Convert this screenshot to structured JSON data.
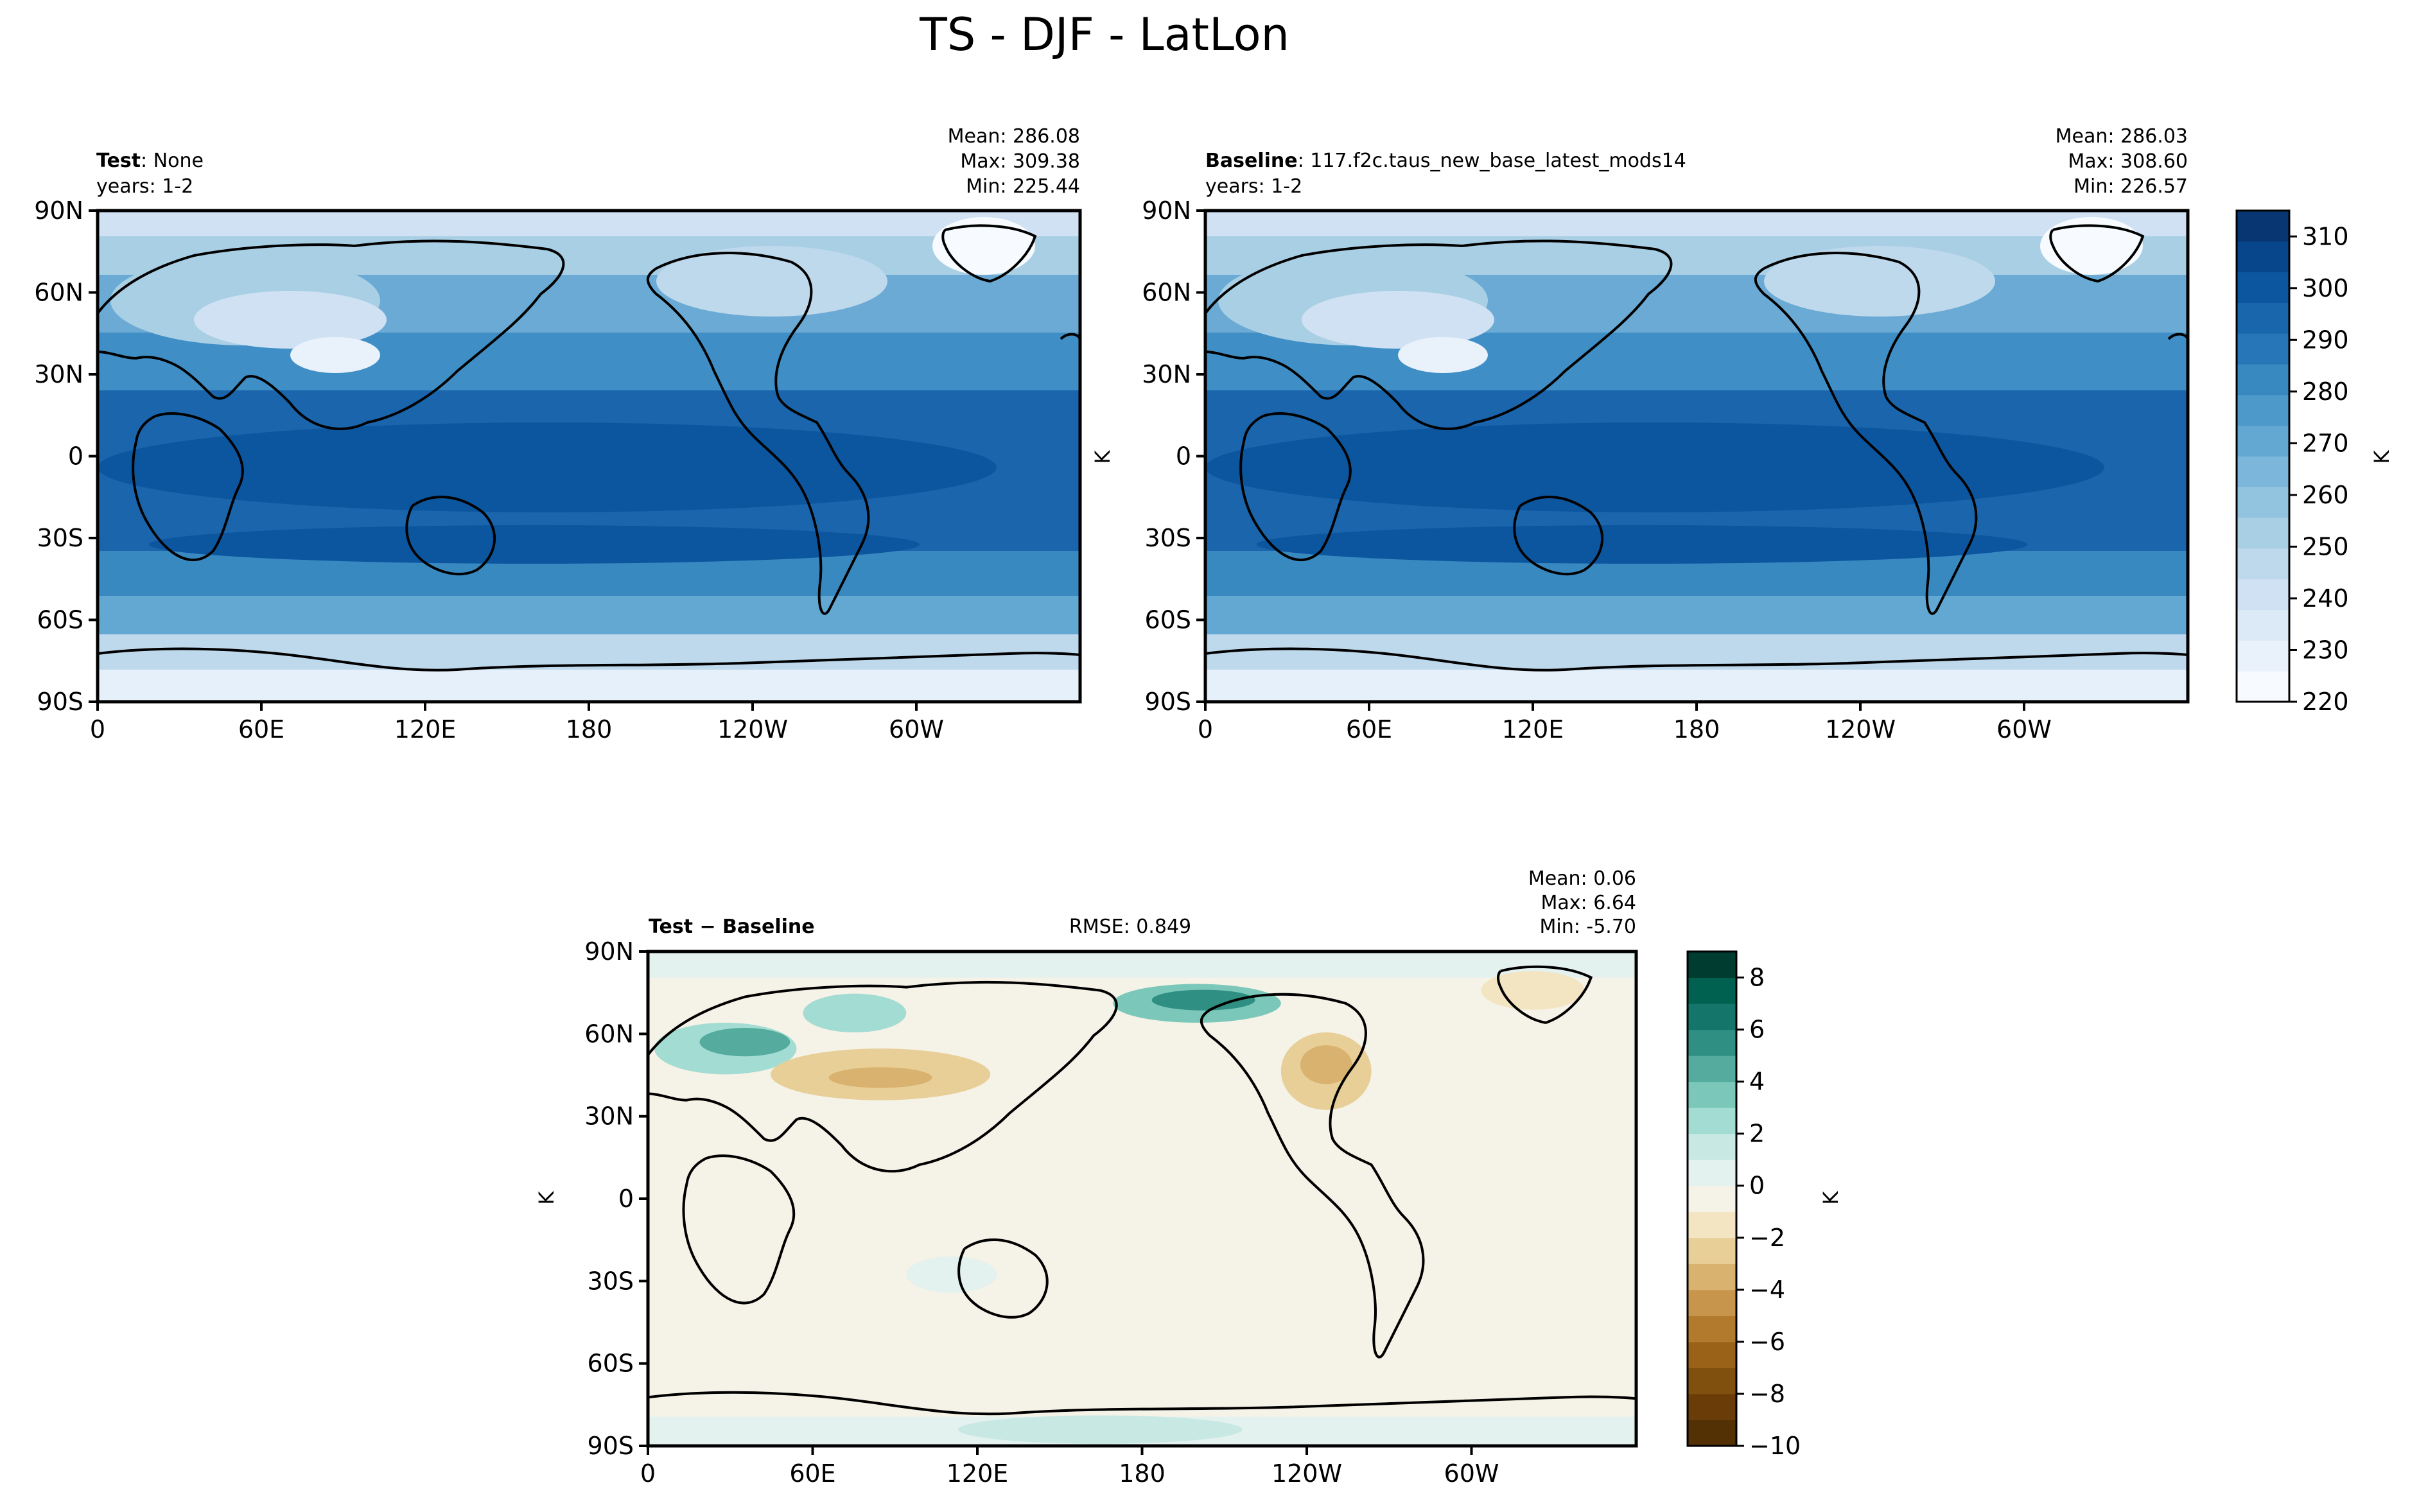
{
  "figure": {
    "title": "TS - DJF - LatLon"
  },
  "units": "K",
  "lat_ticks": [
    "90N",
    "60N",
    "30N",
    "0",
    "30S",
    "60S",
    "90S"
  ],
  "lon_ticks": [
    "0",
    "60E",
    "120E",
    "180",
    "120W",
    "60W"
  ],
  "chart_data": [
    {
      "type": "heatmap",
      "panel": "test",
      "title_bold": "Test",
      "title_rest": ": None",
      "years": "years: 1-2",
      "stats": {
        "mean": "Mean: 286.08",
        "max": "Max: 309.38",
        "min": "Min: 225.44"
      },
      "xlabel": "",
      "ylabel": "",
      "xlim": [
        0,
        360
      ],
      "ylim": [
        -90,
        90
      ]
    },
    {
      "type": "heatmap",
      "panel": "baseline",
      "title_bold": "Baseline",
      "title_rest": ": 117.f2c.taus_new_base_latest_mods14",
      "years": "years: 1-2",
      "stats": {
        "mean": "Mean: 286.03",
        "max": "Max: 308.60",
        "min": "Min: 226.57"
      },
      "xlabel": "",
      "ylabel": "K",
      "xlim": [
        0,
        360
      ],
      "ylim": [
        -90,
        90
      ]
    },
    {
      "type": "heatmap",
      "panel": "diff",
      "title_bold": "Test − Baseline",
      "rmse": "RMSE: 0.849",
      "stats": {
        "mean": "Mean:  0.06",
        "max": "Max:  6.64",
        "min": "Min: -5.70"
      },
      "xlabel": "",
      "ylabel": "K",
      "xlim": [
        0,
        360
      ],
      "ylim": [
        -90,
        90
      ]
    }
  ],
  "colorbar_top": {
    "label": "K",
    "range": [
      220,
      315
    ],
    "ticks": [
      "310",
      "300",
      "290",
      "280",
      "270",
      "260",
      "250",
      "240",
      "230",
      "220"
    ],
    "tick_values": [
      310,
      300,
      290,
      280,
      270,
      260,
      250,
      240,
      230,
      220
    ],
    "colors": [
      "#f7fbff",
      "#e9f2fb",
      "#dceaf7",
      "#cfe1f2",
      "#bed8ec",
      "#a9cfe5",
      "#93c4df",
      "#7cb6da",
      "#63a8d3",
      "#4d99ca",
      "#3989c1",
      "#2777b8",
      "#1966ad",
      "#0c56a0",
      "#08468b",
      "#083672"
    ]
  },
  "colorbar_diff": {
    "label": "K",
    "range": [
      -10,
      9
    ],
    "ticks": [
      "8",
      "6",
      "4",
      "2",
      "0",
      "−2",
      "−4",
      "−6",
      "−8",
      "−10"
    ],
    "tick_values": [
      8,
      6,
      4,
      2,
      0,
      -2,
      -4,
      -6,
      -8,
      -10
    ],
    "colors": [
      "#543005",
      "#6a3d08",
      "#80500f",
      "#9a6218",
      "#b27a2d",
      "#c7954b",
      "#d8b26e",
      "#e8cf98",
      "#f3e5c2",
      "#f5f2e7",
      "#e3f1ef",
      "#c8e9e3",
      "#a3dcd2",
      "#7bc8bb",
      "#55ab9e",
      "#2f8f82",
      "#14766a",
      "#006150",
      "#003c30"
    ]
  }
}
